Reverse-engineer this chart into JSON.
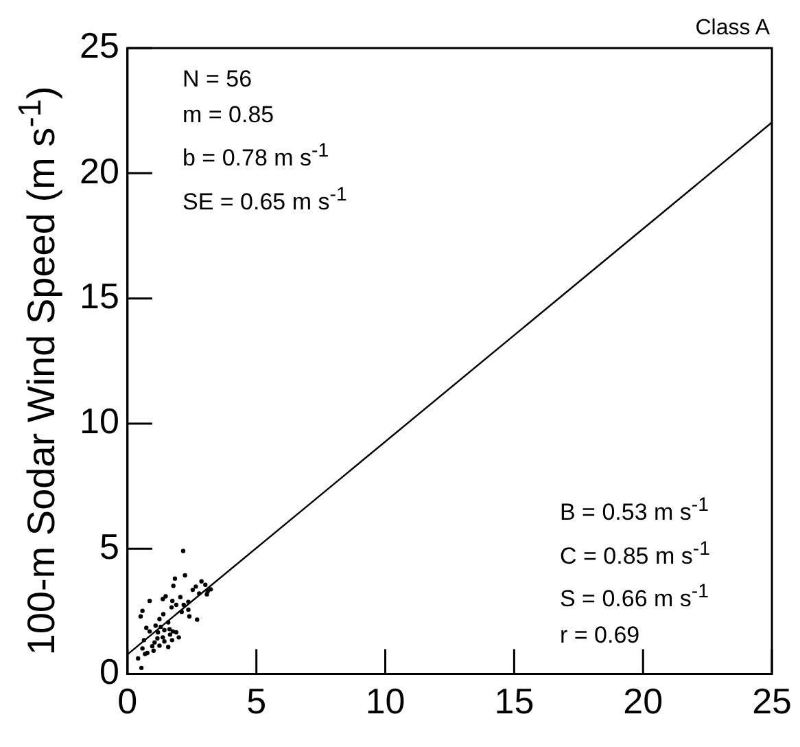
{
  "chart_data": {
    "type": "scatter",
    "title": "Class A",
    "ylabel": "100-m Sodar Wind Speed (m s$^{-1}$)",
    "annotations": [
      "N = 56",
      "m = 0.85",
      "b = 0.78 m s$^{-1}$",
      "SE = 0.65 m s$^{-1}$",
      "B = 0.53 m s$^{-1}$",
      "C = 0.85 m s$^{-1}$",
      "S = 0.66 m s$^{-1}$",
      "r = 0.69"
    ],
    "xlim": [
      0,
      25
    ],
    "xticks": [
      0,
      5,
      10,
      15,
      20,
      25
    ],
    "ylim": [
      0,
      25
    ],
    "yticks": [
      0,
      5,
      10,
      15,
      20,
      25
    ],
    "series": [
      {
        "type": "scatter",
        "color": "#000000",
        "marker": "circle",
        "x": [
          2.16,
          2.23,
          1.84,
          1.78,
          2.87,
          3.02,
          3.23,
          3.08,
          2.53,
          2.78,
          1.48,
          1.37,
          0.86,
          1.74,
          1.89,
          1.71,
          2.18,
          2.36,
          0.58,
          0.51,
          1.39,
          2.4,
          1.24,
          2.7,
          0.73,
          1.29,
          1.43,
          1.63,
          1.76,
          0.86,
          1.18,
          1.37,
          1.65,
          1.99,
          0.64,
          1.05,
          1.43,
          1.73,
          0.96,
          1.24,
          1.58,
          0.68,
          0.77,
          0.41,
          0.54,
          2.05,
          1.58,
          1.09,
          1.89,
          2.36,
          3.11,
          1.01,
          1.16,
          2.65,
          0.58,
          2.1
        ],
        "values": [
          4.91,
          3.94,
          3.81,
          3.52,
          3.7,
          3.56,
          3.38,
          3.18,
          3.36,
          3.21,
          3.1,
          2.99,
          2.92,
          2.92,
          2.76,
          2.66,
          2.76,
          2.57,
          2.52,
          2.3,
          2.39,
          2.3,
          2.19,
          2.17,
          1.84,
          1.88,
          1.75,
          1.79,
          1.7,
          1.7,
          1.66,
          1.46,
          1.57,
          1.46,
          1.35,
          1.26,
          1.3,
          1.35,
          1.11,
          1.13,
          1.08,
          0.8,
          0.84,
          0.62,
          0.24,
          3.07,
          2.06,
          1.93,
          1.66,
          2.88,
          3.3,
          0.93,
          1.42,
          3.49,
          1.02,
          2.48
        ]
      },
      {
        "type": "line",
        "color": "#000000",
        "marker": "none",
        "x": [
          0,
          25
        ],
        "values": [
          0.78,
          22.03
        ]
      }
    ]
  }
}
